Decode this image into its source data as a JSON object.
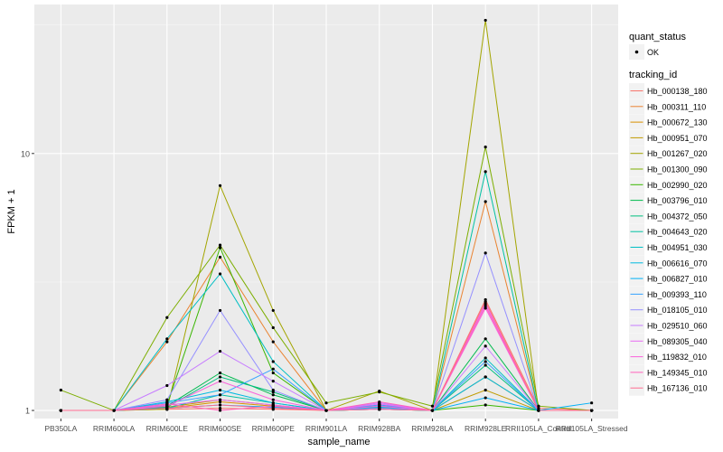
{
  "chart_data": {
    "type": "line",
    "title": "",
    "xlabel": "sample_name",
    "ylabel": "FPKM + 1",
    "y_scale": "log10",
    "ylim": [
      0.93,
      38
    ],
    "y_ticks": [
      {
        "value": 1,
        "label": "1"
      },
      {
        "value": 10,
        "label": "10"
      }
    ],
    "categories": [
      "PB350LA",
      "RRIM600LA",
      "RRIM600LE",
      "RRIM600SE",
      "RRIM600PE",
      "RRIM901LA",
      "RRIM928BA",
      "RRIM928LA",
      "RRIM928LE",
      "RRII105LA_Control",
      "RRII105LA_Stressed"
    ],
    "legend_quant": {
      "title": "quant_status",
      "entries": [
        {
          "label": "OK"
        }
      ]
    },
    "legend_title": "tracking_id",
    "series": [
      {
        "name": "Hb_000138_180",
        "color": "#F8766D",
        "values": [
          1,
          1,
          1.01,
          1.02,
          1.01,
          1,
          1.01,
          1,
          2.7,
          1.02,
          1
        ]
      },
      {
        "name": "Hb_000311_110",
        "color": "#EA8331",
        "values": [
          1,
          1,
          1.85,
          3.95,
          1.85,
          1,
          1.05,
          1,
          6.5,
          1,
          1
        ]
      },
      {
        "name": "Hb_000672_130",
        "color": "#D89000",
        "values": [
          1,
          1,
          1.02,
          1.08,
          1.04,
          1,
          1.01,
          1,
          1.35,
          1,
          1
        ]
      },
      {
        "name": "Hb_000951_070",
        "color": "#C09B00",
        "values": [
          1,
          1,
          1.03,
          1.1,
          1.05,
          1,
          1.03,
          1,
          1.2,
          1,
          1
        ]
      },
      {
        "name": "Hb_001267_020",
        "color": "#A3A500",
        "values": [
          1,
          1,
          1.01,
          7.5,
          2.45,
          1,
          1.19,
          1,
          33,
          1,
          1
        ]
      },
      {
        "name": "Hb_001300_090",
        "color": "#7CAE00",
        "values": [
          1.2,
          1,
          2.3,
          4.4,
          2.1,
          1.07,
          1.18,
          1.04,
          10.6,
          1.04,
          1
        ]
      },
      {
        "name": "Hb_002990_020",
        "color": "#39B600",
        "values": [
          1,
          1,
          1.05,
          4.3,
          1.4,
          1,
          1.02,
          1,
          1.05,
          1,
          1
        ]
      },
      {
        "name": "Hb_003796_010",
        "color": "#00BB4E",
        "values": [
          1,
          1,
          1.04,
          1.4,
          1.15,
          1,
          1.02,
          1,
          1.9,
          1,
          1
        ]
      },
      {
        "name": "Hb_004372_050",
        "color": "#00BF7D",
        "values": [
          1,
          1,
          1.03,
          1.35,
          1.18,
          1,
          1.02,
          1,
          1.5,
          1,
          1
        ]
      },
      {
        "name": "Hb_004643_020",
        "color": "#00C1A3",
        "values": [
          1,
          1,
          1.02,
          1.15,
          1.07,
          1,
          1.01,
          1,
          8.5,
          1,
          1
        ]
      },
      {
        "name": "Hb_004951_030",
        "color": "#00BFC4",
        "values": [
          1,
          1,
          1.9,
          3.4,
          1.55,
          1,
          1.04,
          1,
          1.6,
          1,
          1
        ]
      },
      {
        "name": "Hb_006616_070",
        "color": "#00BAE0",
        "values": [
          1,
          1,
          1.08,
          1.2,
          1.07,
          1,
          1.03,
          1,
          1.35,
          1,
          1
        ]
      },
      {
        "name": "Hb_006827_010",
        "color": "#00B0F6",
        "values": [
          1,
          1,
          1.02,
          1.05,
          1.03,
          1,
          1.01,
          1,
          1.12,
          1,
          1.07
        ]
      },
      {
        "name": "Hb_009393_110",
        "color": "#35A2FF",
        "values": [
          1,
          1,
          1.07,
          1.15,
          1.45,
          1,
          1.05,
          1,
          1.55,
          1,
          1
        ]
      },
      {
        "name": "Hb_018105_010",
        "color": "#9590FF",
        "values": [
          1,
          1,
          1.1,
          2.45,
          1.2,
          1,
          1.02,
          1,
          4.1,
          1,
          1
        ]
      },
      {
        "name": "Hb_029510_060",
        "color": "#C77CFF",
        "values": [
          1,
          1,
          1.25,
          1.7,
          1.3,
          1,
          1.07,
          1,
          1.78,
          1,
          1
        ]
      },
      {
        "name": "Hb_089305_040",
        "color": "#E76BF3",
        "values": [
          1,
          1,
          1.05,
          1.1,
          1.05,
          1,
          1.06,
          1,
          2.6,
          1,
          1
        ]
      },
      {
        "name": "Hb_119832_010",
        "color": "#FA62DB",
        "values": [
          1,
          1,
          1.04,
          1.3,
          1.1,
          1,
          1.04,
          1,
          2.5,
          1,
          1
        ]
      },
      {
        "name": "Hb_149345_010",
        "color": "#FF62BC",
        "values": [
          1,
          1,
          1.06,
          1.0,
          1.04,
          1,
          1.08,
          1,
          2.55,
          1,
          1
        ]
      },
      {
        "name": "Hb_167136_010",
        "color": "#FF6C91",
        "values": [
          1,
          1,
          1.02,
          1.05,
          1.02,
          1,
          1.01,
          1,
          2.65,
          1,
          1
        ]
      }
    ]
  }
}
